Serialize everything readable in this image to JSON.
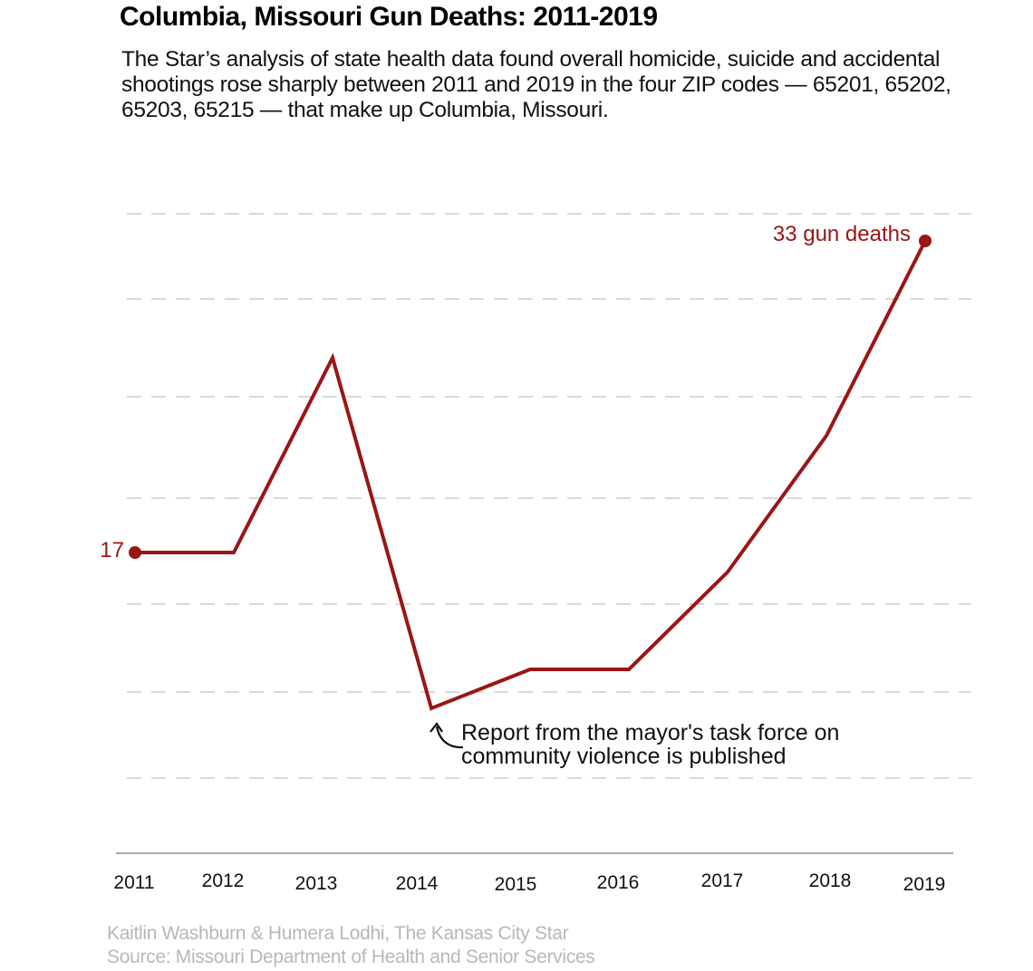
{
  "header": {
    "title": "Columbia, Missouri Gun Deaths: 2011-2019",
    "subtitle": "The Star’s analysis of state health data found overall homicide, suicide and accidental shootings rose sharply between 2011 and 2019 in the four ZIP codes — 65201, 65202, 65203, 65215 — that make up Columbia, Missouri."
  },
  "footer": {
    "byline": "Kaitlin Washburn & Humera Lodhi, The Kansas City Star",
    "source": "Source: Missouri Department of Health and Senior Services"
  },
  "colors": {
    "line": "#9b1515",
    "grid": "#d9d9d9",
    "axis": "#aaaaaa",
    "credit": "#b8b8b8"
  },
  "chart_data": {
    "type": "line",
    "title": "Columbia, Missouri Gun Deaths: 2011-2019",
    "xlabel": "",
    "ylabel": "Gun deaths",
    "categories": [
      "2011",
      "2012",
      "2013",
      "2014",
      "2015",
      "2016",
      "2017",
      "2018",
      "2019"
    ],
    "series": [
      {
        "name": "Gun deaths",
        "values": [
          17,
          17,
          27,
          9,
          11,
          11,
          16,
          23,
          33
        ]
      }
    ],
    "ylim": [
      0,
      40
    ],
    "grid": true,
    "legend": "none",
    "labels": {
      "start": "17",
      "end": "33 gun deaths"
    },
    "annotation": {
      "category": "2014",
      "lines": [
        "Report from the mayor's task force on",
        "community violence is published"
      ]
    }
  }
}
